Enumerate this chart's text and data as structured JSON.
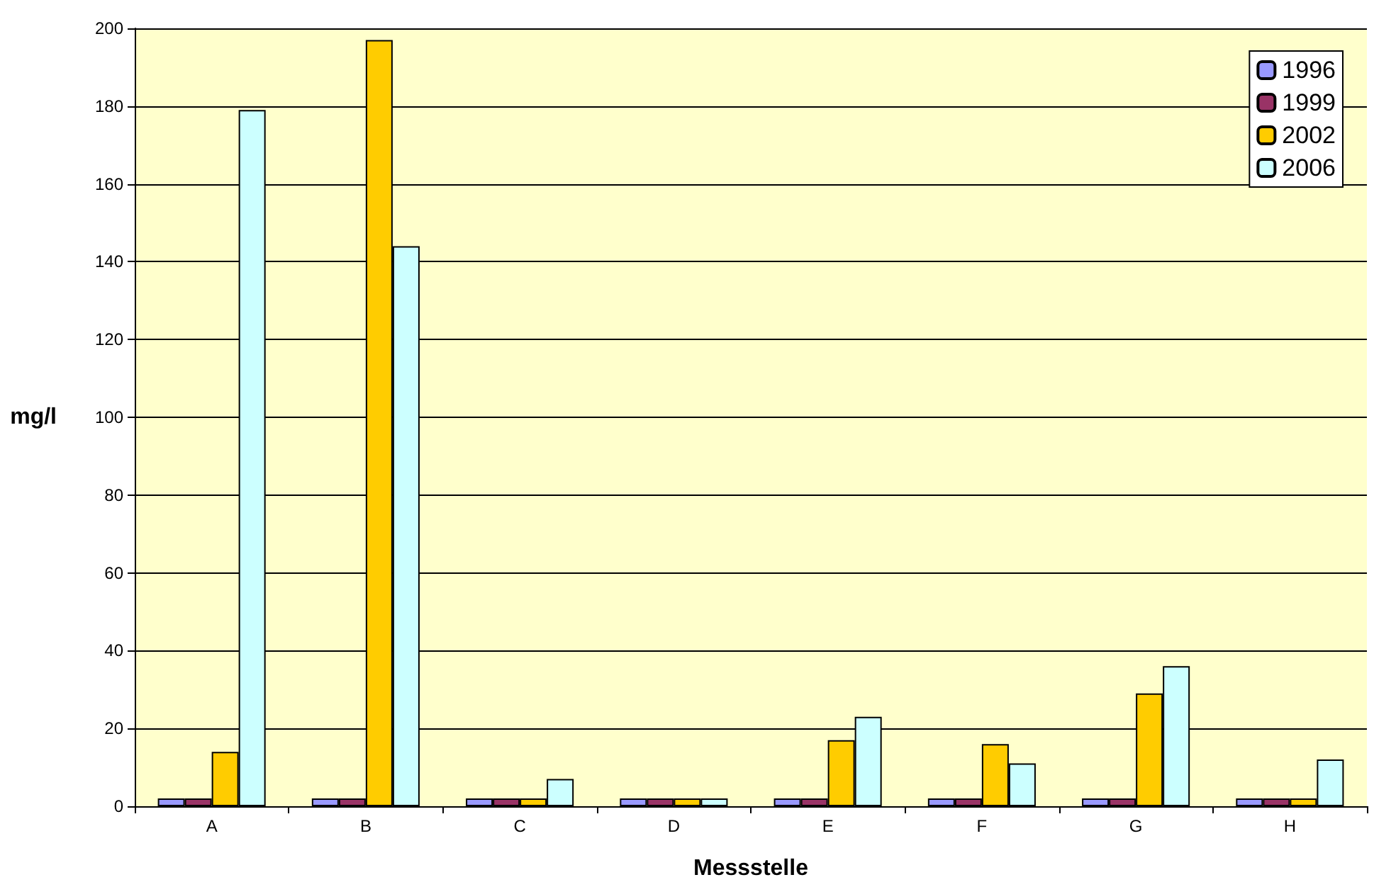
{
  "chart_data": {
    "type": "bar",
    "xlabel": "Messstelle",
    "ylabel": "mg/l",
    "categories": [
      "A",
      "B",
      "C",
      "D",
      "E",
      "F",
      "G",
      "H"
    ],
    "series": [
      {
        "name": "1996",
        "color": "#9999ff",
        "values": [
          2,
          2,
          2,
          2,
          2,
          2,
          2,
          2
        ]
      },
      {
        "name": "1999",
        "color": "#993366",
        "values": [
          2,
          2,
          2,
          2,
          2,
          2,
          2,
          2
        ]
      },
      {
        "name": "2002",
        "color": "#ffcc00",
        "values": [
          14,
          197,
          2,
          2,
          17,
          16,
          29,
          2
        ]
      },
      {
        "name": "2006",
        "color": "#ccffff",
        "values": [
          179,
          144,
          7,
          2,
          23,
          11,
          36,
          12
        ]
      }
    ],
    "ylim": [
      0,
      200
    ],
    "yticks": [
      0,
      20,
      40,
      60,
      80,
      100,
      120,
      140,
      160,
      180,
      200
    ],
    "grid": "y",
    "legend": "top right"
  }
}
